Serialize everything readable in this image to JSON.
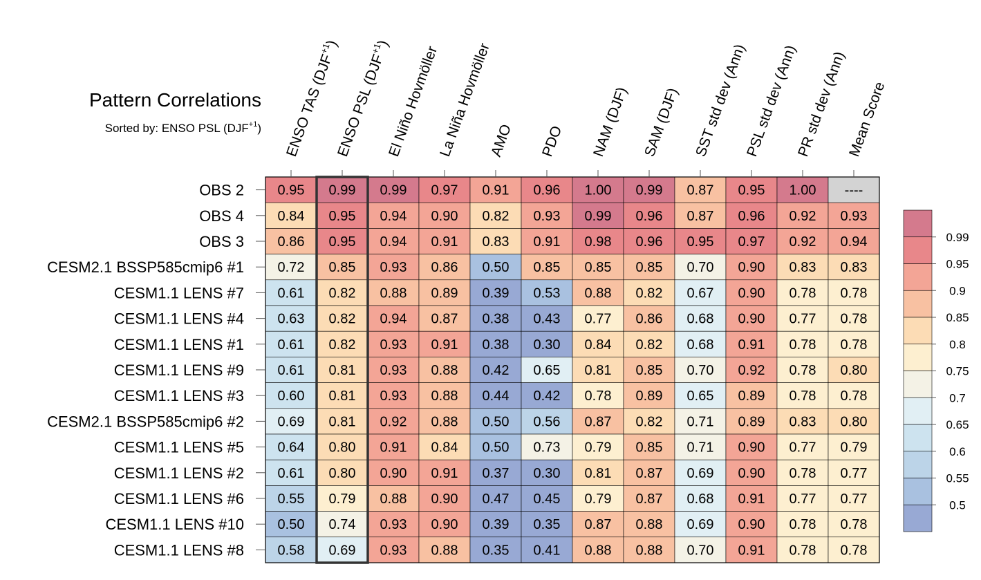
{
  "chart_data": {
    "type": "heatmap",
    "title": "Pattern Correlations",
    "subtitle": {
      "prefix": "Sorted by: ENSO PSL (DJF",
      "sup": "+1",
      "suffix": ")"
    },
    "sorted_column_index": 1,
    "columns": [
      {
        "label": "ENSO TAS (DJF",
        "sup": "+1",
        "tail": ")"
      },
      {
        "label": "ENSO PSL (DJF",
        "sup": "+1",
        "tail": ")"
      },
      {
        "label": "El Niño Hovmöller"
      },
      {
        "label": "La Niña Hovmöller"
      },
      {
        "label": "AMO"
      },
      {
        "label": "PDO"
      },
      {
        "label": "NAM (DJF)"
      },
      {
        "label": "SAM (DJF)"
      },
      {
        "label": "SST std dev (Ann)"
      },
      {
        "label": "PSL std dev (Ann)"
      },
      {
        "label": "PR std dev (Ann)"
      },
      {
        "label": "Mean Score"
      }
    ],
    "rows": [
      {
        "name": "OBS 2",
        "values": [
          "0.95",
          "0.99",
          "0.99",
          "0.97",
          "0.91",
          "0.96",
          "1.00",
          "0.99",
          "0.87",
          "0.95",
          "1.00",
          "----"
        ]
      },
      {
        "name": "OBS 4",
        "values": [
          "0.84",
          "0.95",
          "0.94",
          "0.90",
          "0.82",
          "0.93",
          "0.99",
          "0.96",
          "0.87",
          "0.96",
          "0.92",
          "0.93"
        ]
      },
      {
        "name": "OBS 3",
        "values": [
          "0.86",
          "0.95",
          "0.94",
          "0.91",
          "0.83",
          "0.91",
          "0.98",
          "0.96",
          "0.95",
          "0.97",
          "0.92",
          "0.94"
        ]
      },
      {
        "name": "CESM2.1 BSSP585cmip6 #1",
        "values": [
          "0.72",
          "0.85",
          "0.93",
          "0.86",
          "0.50",
          "0.85",
          "0.85",
          "0.85",
          "0.70",
          "0.90",
          "0.83",
          "0.83"
        ]
      },
      {
        "name": "CESM1.1 LENS #7",
        "values": [
          "0.61",
          "0.82",
          "0.88",
          "0.89",
          "0.39",
          "0.53",
          "0.88",
          "0.82",
          "0.67",
          "0.90",
          "0.78",
          "0.78"
        ]
      },
      {
        "name": "CESM1.1 LENS #4",
        "values": [
          "0.63",
          "0.82",
          "0.94",
          "0.87",
          "0.38",
          "0.43",
          "0.77",
          "0.86",
          "0.68",
          "0.90",
          "0.77",
          "0.78"
        ]
      },
      {
        "name": "CESM1.1 LENS #1",
        "values": [
          "0.61",
          "0.82",
          "0.93",
          "0.91",
          "0.38",
          "0.30",
          "0.84",
          "0.82",
          "0.68",
          "0.91",
          "0.78",
          "0.78"
        ]
      },
      {
        "name": "CESM1.1 LENS #9",
        "values": [
          "0.61",
          "0.81",
          "0.93",
          "0.88",
          "0.42",
          "0.65",
          "0.81",
          "0.85",
          "0.70",
          "0.92",
          "0.78",
          "0.80"
        ]
      },
      {
        "name": "CESM1.1 LENS #3",
        "values": [
          "0.60",
          "0.81",
          "0.93",
          "0.88",
          "0.44",
          "0.42",
          "0.78",
          "0.89",
          "0.65",
          "0.89",
          "0.78",
          "0.78"
        ]
      },
      {
        "name": "CESM2.1 BSSP585cmip6 #2",
        "values": [
          "0.69",
          "0.81",
          "0.92",
          "0.88",
          "0.50",
          "0.56",
          "0.87",
          "0.82",
          "0.71",
          "0.89",
          "0.83",
          "0.80"
        ]
      },
      {
        "name": "CESM1.1 LENS #5",
        "values": [
          "0.64",
          "0.80",
          "0.91",
          "0.84",
          "0.50",
          "0.73",
          "0.79",
          "0.85",
          "0.71",
          "0.90",
          "0.77",
          "0.79"
        ]
      },
      {
        "name": "CESM1.1 LENS #2",
        "values": [
          "0.61",
          "0.80",
          "0.90",
          "0.91",
          "0.37",
          "0.30",
          "0.81",
          "0.87",
          "0.69",
          "0.90",
          "0.78",
          "0.77"
        ]
      },
      {
        "name": "CESM1.1 LENS #6",
        "values": [
          "0.55",
          "0.79",
          "0.88",
          "0.90",
          "0.47",
          "0.45",
          "0.79",
          "0.87",
          "0.68",
          "0.91",
          "0.77",
          "0.77"
        ]
      },
      {
        "name": "CESM1.1 LENS #10",
        "values": [
          "0.50",
          "0.74",
          "0.93",
          "0.90",
          "0.39",
          "0.35",
          "0.87",
          "0.88",
          "0.69",
          "0.90",
          "0.78",
          "0.78"
        ]
      },
      {
        "name": "CESM1.1 LENS #8",
        "values": [
          "0.58",
          "0.69",
          "0.93",
          "0.88",
          "0.35",
          "0.41",
          "0.88",
          "0.88",
          "0.70",
          "0.91",
          "0.78",
          "0.78"
        ]
      }
    ],
    "colorbar": {
      "levels": [
        0.99,
        0.95,
        0.9,
        0.85,
        0.8,
        0.75,
        0.7,
        0.65,
        0.6,
        0.55,
        0.5
      ],
      "labels": [
        "0.99",
        "0.95",
        "0.9",
        "0.85",
        "0.8",
        "0.75",
        "0.7",
        "0.65",
        "0.6",
        "0.55",
        "0.5"
      ],
      "colors": [
        "#d47a8d",
        "#e8878a",
        "#f3a596",
        "#f8c1a2",
        "#fcdcb5",
        "#fdefd0",
        "#f4f2e6",
        "#e1eff4",
        "#cde3ef",
        "#bcd4e8",
        "#a9c1e0",
        "#98a9d4"
      ],
      "missing_color": "#d3d3d3"
    }
  }
}
